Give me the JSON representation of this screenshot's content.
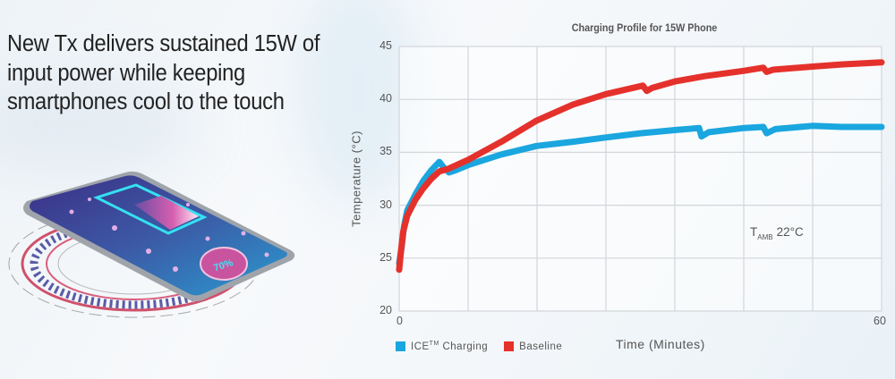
{
  "headline": {
    "lines": [
      "New Tx delivers sustained 15W of",
      "input power while keeping",
      "smartphones cool to the touch"
    ]
  },
  "illustration": {
    "description": "smartphone on wireless charging pad",
    "battery_percent_label": "70%"
  },
  "colors": {
    "ice": "#1aa6df",
    "baseline": "#e5312b",
    "grid": "#d2d6da",
    "text": "#555555"
  },
  "chart_data": {
    "type": "line",
    "title": "Charging Profile for 15W Phone",
    "xlabel": "Time (Minutes)",
    "ylabel": "Temperature (°C)",
    "xlim": [
      0,
      60
    ],
    "ylim": [
      20,
      45
    ],
    "x_ticks": [
      "0",
      "60"
    ],
    "y_ticks": [
      "45",
      "40",
      "35",
      "30",
      "25",
      "20"
    ],
    "grid": {
      "vertical_divisions": 7,
      "horizontal_divisions": 5
    },
    "legend_position": "bottom-left",
    "annotation": {
      "text_main": "T",
      "text_sub": "AMB",
      "text_value": "22°C"
    },
    "series": [
      {
        "name": "ICE™ Charging",
        "legend_main": "ICE",
        "legend_sup": "TM",
        "legend_rest": "Charging",
        "color": "#1aa6df",
        "points": [
          [
            0,
            24.5
          ],
          [
            0.3,
            26
          ],
          [
            0.6,
            28
          ],
          [
            1,
            29.5
          ],
          [
            2,
            31
          ],
          [
            3,
            32.3
          ],
          [
            4,
            33.3
          ],
          [
            5,
            34.1
          ],
          [
            5.5,
            33.6
          ],
          [
            6.2,
            33.1
          ],
          [
            7,
            33.3
          ],
          [
            8.6,
            33.8
          ],
          [
            12.7,
            34.8
          ],
          [
            17.1,
            35.6
          ],
          [
            21.6,
            36.0
          ],
          [
            25.7,
            36.4
          ],
          [
            30,
            36.8
          ],
          [
            34.3,
            37.1
          ],
          [
            37.3,
            37.3
          ],
          [
            37.6,
            36.5
          ],
          [
            38.5,
            36.9
          ],
          [
            42.9,
            37.3
          ],
          [
            45.3,
            37.4
          ],
          [
            45.7,
            36.8
          ],
          [
            46.8,
            37.2
          ],
          [
            51.4,
            37.5
          ],
          [
            55,
            37.4
          ],
          [
            60,
            37.4
          ]
        ]
      },
      {
        "name": "Baseline",
        "color": "#e5312b",
        "points": [
          [
            0,
            23.9
          ],
          [
            0.2,
            25.5
          ],
          [
            0.5,
            27.5
          ],
          [
            1,
            29.0
          ],
          [
            2,
            30.5
          ],
          [
            3,
            31.6
          ],
          [
            4,
            32.5
          ],
          [
            5,
            33.2
          ],
          [
            6,
            33.4
          ],
          [
            8.6,
            34.3
          ],
          [
            12.7,
            36.0
          ],
          [
            17.1,
            38.0
          ],
          [
            21.6,
            39.5
          ],
          [
            25.7,
            40.5
          ],
          [
            30.3,
            41.3
          ],
          [
            30.8,
            40.8
          ],
          [
            31.5,
            41.1
          ],
          [
            34.3,
            41.7
          ],
          [
            38,
            42.2
          ],
          [
            42.9,
            42.7
          ],
          [
            45.3,
            43.0
          ],
          [
            45.7,
            42.6
          ],
          [
            46.5,
            42.8
          ],
          [
            51.4,
            43.1
          ],
          [
            55,
            43.3
          ],
          [
            60,
            43.5
          ]
        ]
      }
    ]
  }
}
